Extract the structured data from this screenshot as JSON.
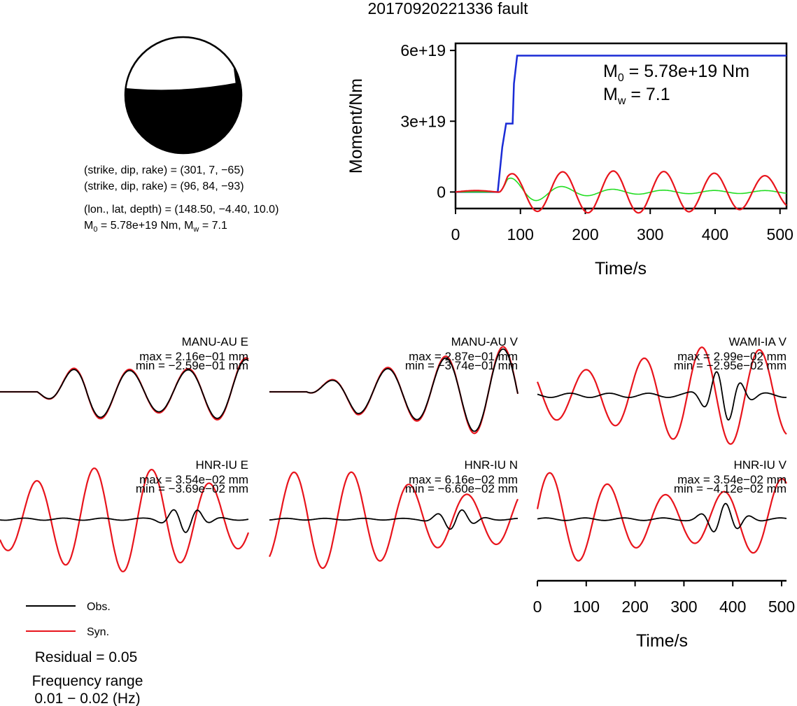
{
  "title": "20170920221336 fault",
  "mechanism": {
    "np1": "(strike, dip, rake) = (301, 7, −65)",
    "np2": "(strike, dip, rake) = (96, 84, −93)",
    "location": "(lon., lat, depth) = (148.50, −4.40, 10.0)",
    "m0_text_prefix": "M",
    "m0_sub": "0",
    "m0_value": " = 5.78e+19 Nm, M",
    "mw_sub": "w",
    "mw_value": " = 7.1"
  },
  "moment_plot": {
    "ylabel": "Moment/Nm",
    "xlabel": "Time/s",
    "m0_label_main": "M",
    "m0_label_sub": "0",
    "m0_label_value": " = 5.78e+19 Nm",
    "mw_label_main": "M",
    "mw_label_sub": "w",
    "mw_label_value": " = 7.1"
  },
  "legend": {
    "obs": "Obs.",
    "syn": "Syn.",
    "residual": "Residual = 0.05",
    "freq_title": "Frequency range",
    "freq_value": "0.01 − 0.02 (Hz)"
  },
  "bottom_axis": {
    "xlabel": "Time/s"
  },
  "colors": {
    "observed": "#000000",
    "synthetic": "#e8141c",
    "moment": "#1a2bd6",
    "source_fn": "#22dd22"
  },
  "chart_data": [
    {
      "type": "line",
      "title": "",
      "xlabel": "Time/s",
      "ylabel": "Moment/Nm",
      "xlim": [
        0,
        510
      ],
      "ylim": [
        -7e+18,
        6.3e+19
      ],
      "xticks": [
        0,
        100,
        200,
        300,
        400,
        500
      ],
      "yticks": [
        0,
        3e+19,
        6e+19
      ],
      "ytick_labels": [
        "0",
        "3e+19",
        "6e+19"
      ],
      "series": [
        {
          "name": "moment",
          "x": [
            0,
            65,
            72,
            78,
            80,
            88,
            90,
            95,
            510
          ],
          "y": [
            0,
            0,
            1.9e+19,
            2.9e+19,
            2.9e+19,
            2.9e+19,
            4.6e+19,
            5.78e+19,
            5.78e+19
          ]
        }
      ]
    },
    {
      "type": "line",
      "station": "MANU-AU E",
      "max": "max = 2.16e−01 mm",
      "min": "min = −2.59e−01 mm"
    },
    {
      "type": "line",
      "station": "MANU-AU V",
      "max": "max = 2.87e−01 mm",
      "min": "min = −3.74e−01 mm"
    },
    {
      "type": "line",
      "station": "WAMI-IA V",
      "max": "max = 2.99e−02 mm",
      "min": "min = −2.95e−02 mm"
    },
    {
      "type": "line",
      "station": "HNR-IU E",
      "max": "max = 3.54e−02 mm",
      "min": "min = −3.69e−02 mm"
    },
    {
      "type": "line",
      "station": "HNR-IU N",
      "max": "max = 6.16e−02 mm",
      "min": "min = −6.60e−02 mm"
    },
    {
      "type": "line",
      "station": "HNR-IU V",
      "max": "max = 3.54e−02 mm",
      "min": "min = −4.12e−02 mm"
    }
  ]
}
